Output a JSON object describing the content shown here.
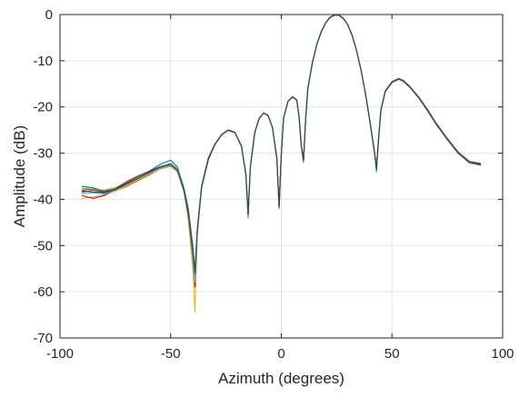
{
  "chart_data": {
    "type": "line",
    "title": "",
    "xlabel": "Azimuth (degrees)",
    "ylabel": "Amplitude (dB)",
    "xlim": [
      -100,
      100
    ],
    "ylim": [
      -70,
      0
    ],
    "xticks": [
      -100,
      -50,
      0,
      50,
      100
    ],
    "yticks": [
      0,
      -10,
      -20,
      -30,
      -40,
      -50,
      -60,
      -70
    ],
    "grid": true,
    "legend": "none",
    "series": [
      {
        "color": "#0072BD",
        "x": [
          -90,
          -85,
          -80,
          -75,
          -70,
          -65,
          -60,
          -55,
          -50,
          -47,
          -44,
          -42,
          -40,
          -39,
          -38,
          -36,
          -33,
          -30,
          -27,
          -24,
          -21,
          -18,
          -16,
          -15,
          -14,
          -12,
          -10,
          -8,
          -6,
          -4,
          -2,
          -1,
          0,
          1,
          3,
          5,
          7,
          8,
          9,
          10,
          11,
          12,
          14,
          16,
          18,
          20,
          22,
          24,
          26,
          28,
          30,
          32,
          34,
          36,
          38,
          40,
          42,
          43,
          44,
          45,
          47,
          50,
          53,
          55,
          58,
          62,
          66,
          70,
          75,
          80,
          85,
          90
        ],
        "values": [
          -37.2,
          -37.5,
          -38.2,
          -37.8,
          -36.5,
          -35.2,
          -34.0,
          -32.5,
          -31.5,
          -33.0,
          -37.5,
          -42.0,
          -50.0,
          -55.5,
          -46.5,
          -37.0,
          -31.0,
          -28.0,
          -26.0,
          -25.0,
          -25.5,
          -28.5,
          -34.5,
          -43.0,
          -33.0,
          -25.5,
          -22.5,
          -21.3,
          -21.8,
          -24.5,
          -31.0,
          -41.5,
          -30.0,
          -22.5,
          -18.8,
          -17.8,
          -18.5,
          -22.0,
          -28.0,
          -31.5,
          -22.5,
          -16.0,
          -10.5,
          -6.5,
          -3.8,
          -1.8,
          -0.6,
          -0.1,
          -0.1,
          -0.8,
          -2.2,
          -4.5,
          -7.8,
          -12.0,
          -17.0,
          -23.0,
          -29.5,
          -34.0,
          -26.5,
          -20.5,
          -16.5,
          -14.5,
          -13.8,
          -14.2,
          -15.5,
          -17.8,
          -20.5,
          -23.5,
          -26.8,
          -29.8,
          -31.8,
          -32.2
        ]
      },
      {
        "color": "#D95319",
        "x": [
          -90,
          -85,
          -80,
          -75,
          -70,
          -65,
          -60,
          -55,
          -50,
          -47,
          -44,
          -42,
          -40,
          -39,
          -38,
          -36,
          -33,
          -30,
          -27,
          -24,
          -21,
          -18,
          -16,
          -15,
          -14,
          -12,
          -10,
          -8,
          -6,
          -4,
          -2,
          -1,
          0,
          1,
          3,
          5,
          7,
          8,
          9,
          10,
          11,
          12,
          14,
          16,
          18,
          20,
          22,
          24,
          26,
          28,
          30,
          32,
          34,
          36,
          38,
          40,
          42,
          43,
          44,
          45,
          47,
          50,
          53,
          55,
          58,
          62,
          66,
          70,
          75,
          80,
          85,
          90
        ],
        "values": [
          -38.5,
          -38.0,
          -38.5,
          -38.2,
          -37.2,
          -36.0,
          -34.8,
          -33.5,
          -32.8,
          -34.0,
          -38.0,
          -43.0,
          -52.0,
          -58.0,
          -47.0,
          -37.5,
          -31.5,
          -28.2,
          -26.1,
          -25.1,
          -25.6,
          -28.6,
          -34.8,
          -44.0,
          -33.2,
          -25.6,
          -22.6,
          -21.4,
          -21.9,
          -24.6,
          -31.5,
          -42.0,
          -30.3,
          -22.6,
          -18.9,
          -17.9,
          -18.6,
          -22.2,
          -28.5,
          -32.0,
          -22.7,
          -16.1,
          -10.6,
          -6.6,
          -3.9,
          -1.9,
          -0.7,
          -0.2,
          -0.2,
          -0.9,
          -2.3,
          -4.6,
          -7.9,
          -12.1,
          -17.1,
          -23.2,
          -29.8,
          -33.0,
          -26.8,
          -20.7,
          -16.7,
          -14.7,
          -14.0,
          -14.4,
          -15.7,
          -18.0,
          -20.8,
          -23.8,
          -27.1,
          -30.1,
          -32.1,
          -32.6
        ]
      },
      {
        "color": "#EDB120",
        "x": [
          -90,
          -85,
          -80,
          -75,
          -70,
          -65,
          -60,
          -55,
          -50,
          -47,
          -44,
          -42,
          -40,
          -39,
          -38,
          -36,
          -33,
          -30,
          -27,
          -24,
          -21,
          -18,
          -16,
          -15,
          -14,
          -12,
          -10,
          -8,
          -6,
          -4,
          -2,
          -1,
          0,
          1,
          3,
          5,
          7,
          8,
          9,
          10,
          11,
          12,
          14,
          16,
          18,
          20,
          22,
          24,
          26,
          28,
          30,
          32,
          34,
          36,
          38,
          40,
          42,
          43,
          44,
          45,
          47,
          50,
          53,
          55,
          58,
          62,
          66,
          70,
          75,
          80,
          85,
          90
        ],
        "values": [
          -39.8,
          -39.5,
          -39.0,
          -38.2,
          -37.0,
          -35.8,
          -34.6,
          -33.5,
          -32.6,
          -33.8,
          -38.5,
          -44.5,
          -55.0,
          -64.5,
          -48.0,
          -37.2,
          -31.3,
          -28.1,
          -26.0,
          -25.0,
          -25.5,
          -28.4,
          -34.5,
          -43.5,
          -33.0,
          -25.5,
          -22.5,
          -21.3,
          -21.8,
          -24.5,
          -31.2,
          -41.8,
          -30.1,
          -22.5,
          -18.8,
          -17.8,
          -18.5,
          -22.1,
          -28.3,
          -31.8,
          -22.6,
          -16.0,
          -10.5,
          -6.5,
          -3.8,
          -1.8,
          -0.6,
          -0.1,
          -0.1,
          -0.8,
          -2.2,
          -4.5,
          -7.8,
          -12.0,
          -17.0,
          -23.1,
          -29.6,
          -32.5,
          -26.6,
          -20.6,
          -16.6,
          -14.6,
          -13.9,
          -14.3,
          -15.6,
          -17.9,
          -20.7,
          -23.7,
          -27.0,
          -30.0,
          -32.0,
          -32.4
        ]
      },
      {
        "color": "#7E2F8E",
        "x": [
          -90,
          -85,
          -80,
          -75,
          -70,
          -65,
          -60,
          -55,
          -50,
          -47,
          -44,
          -42,
          -40,
          -39,
          -38,
          -36,
          -33,
          -30,
          -27,
          -24,
          -21,
          -18,
          -16,
          -15,
          -14,
          -12,
          -10,
          -8,
          -6,
          -4,
          -2,
          -1,
          0,
          1,
          3,
          5,
          7,
          8,
          9,
          10,
          11,
          12,
          14,
          16,
          18,
          20,
          22,
          24,
          26,
          28,
          30,
          32,
          34,
          36,
          38,
          40,
          42,
          43,
          44,
          45,
          47,
          50,
          53,
          55,
          58,
          62,
          66,
          70,
          75,
          80,
          85,
          90
        ],
        "values": [
          -38.0,
          -37.8,
          -38.4,
          -37.8,
          -36.6,
          -35.5,
          -34.4,
          -33.2,
          -32.4,
          -33.6,
          -38.0,
          -43.0,
          -51.0,
          -56.5,
          -46.8,
          -37.3,
          -31.4,
          -28.1,
          -26.0,
          -25.0,
          -25.5,
          -28.5,
          -34.6,
          -43.2,
          -33.1,
          -25.5,
          -22.5,
          -21.3,
          -21.8,
          -24.5,
          -31.1,
          -41.6,
          -30.1,
          -22.5,
          -18.8,
          -17.8,
          -18.5,
          -22.0,
          -28.1,
          -31.6,
          -22.6,
          -16.0,
          -10.5,
          -6.5,
          -3.8,
          -1.8,
          -0.6,
          -0.1,
          -0.1,
          -0.8,
          -2.2,
          -4.5,
          -7.8,
          -12.0,
          -17.0,
          -23.0,
          -29.5,
          -33.5,
          -26.6,
          -20.6,
          -16.6,
          -14.6,
          -13.9,
          -14.3,
          -15.6,
          -17.9,
          -20.6,
          -23.6,
          -26.9,
          -29.9,
          -31.9,
          -32.3
        ]
      },
      {
        "color": "#77AC30",
        "x": [
          -90,
          -85,
          -80,
          -75,
          -70,
          -65,
          -60,
          -55,
          -50,
          -47,
          -44,
          -42,
          -40,
          -39,
          -38,
          -36,
          -33,
          -30,
          -27,
          -24,
          -21,
          -18,
          -16,
          -15,
          -14,
          -12,
          -10,
          -8,
          -6,
          -4,
          -2,
          -1,
          0,
          1,
          3,
          5,
          7,
          8,
          9,
          10,
          11,
          12,
          14,
          16,
          18,
          20,
          22,
          24,
          26,
          28,
          30,
          32,
          34,
          36,
          38,
          40,
          42,
          43,
          44,
          45,
          47,
          50,
          53,
          55,
          58,
          62,
          66,
          70,
          75,
          80,
          85,
          90
        ],
        "values": [
          -37.6,
          -37.8,
          -38.0,
          -37.5,
          -36.3,
          -35.2,
          -34.2,
          -33.0,
          -32.2,
          -33.4,
          -37.8,
          -42.8,
          -51.5,
          -57.0,
          -46.9,
          -37.4,
          -31.4,
          -28.1,
          -26.0,
          -25.0,
          -25.5,
          -28.5,
          -34.6,
          -43.3,
          -33.1,
          -25.5,
          -22.5,
          -21.3,
          -21.8,
          -24.5,
          -31.1,
          -41.7,
          -30.1,
          -22.5,
          -18.8,
          -17.8,
          -18.5,
          -22.0,
          -28.2,
          -31.7,
          -22.6,
          -16.0,
          -10.5,
          -6.5,
          -3.8,
          -1.8,
          -0.6,
          -0.1,
          -0.1,
          -0.8,
          -2.2,
          -4.5,
          -7.8,
          -12.0,
          -17.0,
          -23.0,
          -29.5,
          -33.2,
          -26.6,
          -20.6,
          -16.6,
          -14.6,
          -13.9,
          -14.3,
          -15.6,
          -17.9,
          -20.7,
          -23.7,
          -27.0,
          -30.0,
          -32.0,
          -32.4
        ]
      },
      {
        "color": "#A2142F",
        "x": [
          -90,
          -85,
          -80,
          -75,
          -70,
          -65,
          -60,
          -55,
          -50,
          -47,
          -44,
          -42,
          -40,
          -39,
          -38,
          -36,
          -33,
          -30,
          -27,
          -24,
          -21,
          -18,
          -16,
          -15,
          -14,
          -12,
          -10,
          -8,
          -6,
          -4,
          -2,
          -1,
          0,
          1,
          3,
          5,
          7,
          8,
          9,
          10,
          11,
          12,
          14,
          16,
          18,
          20,
          22,
          24,
          26,
          28,
          30,
          32,
          34,
          36,
          38,
          40,
          42,
          43,
          44,
          45,
          47,
          50,
          53,
          55,
          58,
          62,
          66,
          70,
          75,
          80,
          85,
          90
        ],
        "values": [
          -39.2,
          -39.8,
          -39.2,
          -37.8,
          -36.2,
          -35.0,
          -34.0,
          -33.0,
          -32.5,
          -33.7,
          -38.2,
          -43.5,
          -52.5,
          -59.0,
          -47.2,
          -37.4,
          -31.4,
          -28.1,
          -26.0,
          -25.0,
          -25.5,
          -28.5,
          -34.6,
          -43.4,
          -33.1,
          -25.5,
          -22.5,
          -21.3,
          -21.8,
          -24.5,
          -31.2,
          -41.8,
          -30.1,
          -22.5,
          -18.8,
          -17.8,
          -18.5,
          -22.1,
          -28.3,
          -31.9,
          -22.6,
          -16.0,
          -10.5,
          -6.5,
          -3.8,
          -1.8,
          -0.6,
          -0.1,
          -0.1,
          -0.8,
          -2.2,
          -4.5,
          -7.8,
          -12.0,
          -17.0,
          -23.1,
          -29.7,
          -32.8,
          -26.7,
          -20.7,
          -16.7,
          -14.7,
          -14.0,
          -14.4,
          -15.7,
          -18.0,
          -20.8,
          -23.8,
          -27.1,
          -30.1,
          -32.1,
          -32.5
        ]
      },
      {
        "color": "#4DBEEE",
        "x": [
          -90,
          -85,
          -80,
          -75,
          -70,
          -65,
          -60,
          -55,
          -50,
          -47,
          -44,
          -42,
          -40,
          -39,
          -38,
          -36,
          -33,
          -30,
          -27,
          -24,
          -21,
          -18,
          -16,
          -15,
          -14,
          -12,
          -10,
          -8,
          -6,
          -4,
          -2,
          -1,
          0,
          1,
          3,
          5,
          7,
          8,
          9,
          10,
          11,
          12,
          14,
          16,
          18,
          20,
          22,
          24,
          26,
          28,
          30,
          32,
          34,
          36,
          38,
          40,
          42,
          43,
          44,
          45,
          47,
          50,
          53,
          55,
          58,
          62,
          66,
          70,
          75,
          80,
          85,
          90
        ],
        "values": [
          -38.8,
          -38.6,
          -38.8,
          -38.0,
          -36.8,
          -35.6,
          -34.5,
          -33.3,
          -32.6,
          -33.8,
          -38.2,
          -43.2,
          -52.0,
          -58.0,
          -47.0,
          -37.4,
          -31.4,
          -28.1,
          -26.0,
          -25.0,
          -25.5,
          -28.5,
          -34.6,
          -43.3,
          -33.1,
          -25.5,
          -22.5,
          -21.3,
          -21.8,
          -24.5,
          -31.1,
          -41.7,
          -30.1,
          -22.5,
          -18.8,
          -17.8,
          -18.5,
          -22.0,
          -28.2,
          -31.8,
          -22.6,
          -16.0,
          -10.5,
          -6.5,
          -3.8,
          -1.8,
          -0.6,
          -0.1,
          -0.1,
          -0.8,
          -2.2,
          -4.5,
          -7.8,
          -12.0,
          -17.0,
          -23.0,
          -29.6,
          -33.0,
          -26.6,
          -20.6,
          -16.6,
          -14.6,
          -13.9,
          -14.3,
          -15.6,
          -17.9,
          -20.7,
          -23.7,
          -27.0,
          -30.0,
          -32.0,
          -32.4
        ]
      },
      {
        "color": "#2E4A3A",
        "x": [
          -90,
          -85,
          -80,
          -75,
          -70,
          -65,
          -60,
          -55,
          -50,
          -47,
          -44,
          -42,
          -40,
          -39,
          -38,
          -36,
          -33,
          -30,
          -27,
          -24,
          -21,
          -18,
          -16,
          -15,
          -14,
          -12,
          -10,
          -8,
          -6,
          -4,
          -2,
          -1,
          0,
          1,
          3,
          5,
          7,
          8,
          9,
          10,
          11,
          12,
          14,
          16,
          18,
          20,
          22,
          24,
          26,
          28,
          30,
          32,
          34,
          36,
          38,
          40,
          42,
          43,
          44,
          45,
          47,
          50,
          53,
          55,
          58,
          62,
          66,
          70,
          75,
          80,
          85,
          90
        ],
        "values": [
          -38.2,
          -38.4,
          -38.6,
          -37.9,
          -36.7,
          -35.5,
          -34.3,
          -33.1,
          -32.4,
          -33.6,
          -38.0,
          -43.0,
          -51.0,
          -56.0,
          -46.8,
          -37.3,
          -31.4,
          -28.1,
          -26.0,
          -25.0,
          -25.5,
          -28.5,
          -34.6,
          -43.2,
          -33.1,
          -25.5,
          -22.5,
          -21.3,
          -21.8,
          -24.5,
          -31.1,
          -41.6,
          -30.1,
          -22.5,
          -18.8,
          -17.8,
          -18.5,
          -22.0,
          -28.1,
          -31.6,
          -22.6,
          -16.0,
          -10.5,
          -6.5,
          -3.8,
          -1.8,
          -0.6,
          -0.1,
          -0.1,
          -0.8,
          -2.2,
          -4.5,
          -7.8,
          -12.0,
          -17.0,
          -23.0,
          -29.5,
          -33.3,
          -26.6,
          -20.6,
          -16.6,
          -14.6,
          -13.9,
          -14.3,
          -15.6,
          -17.9,
          -20.6,
          -23.6,
          -26.9,
          -29.9,
          -31.9,
          -32.4
        ]
      }
    ]
  }
}
